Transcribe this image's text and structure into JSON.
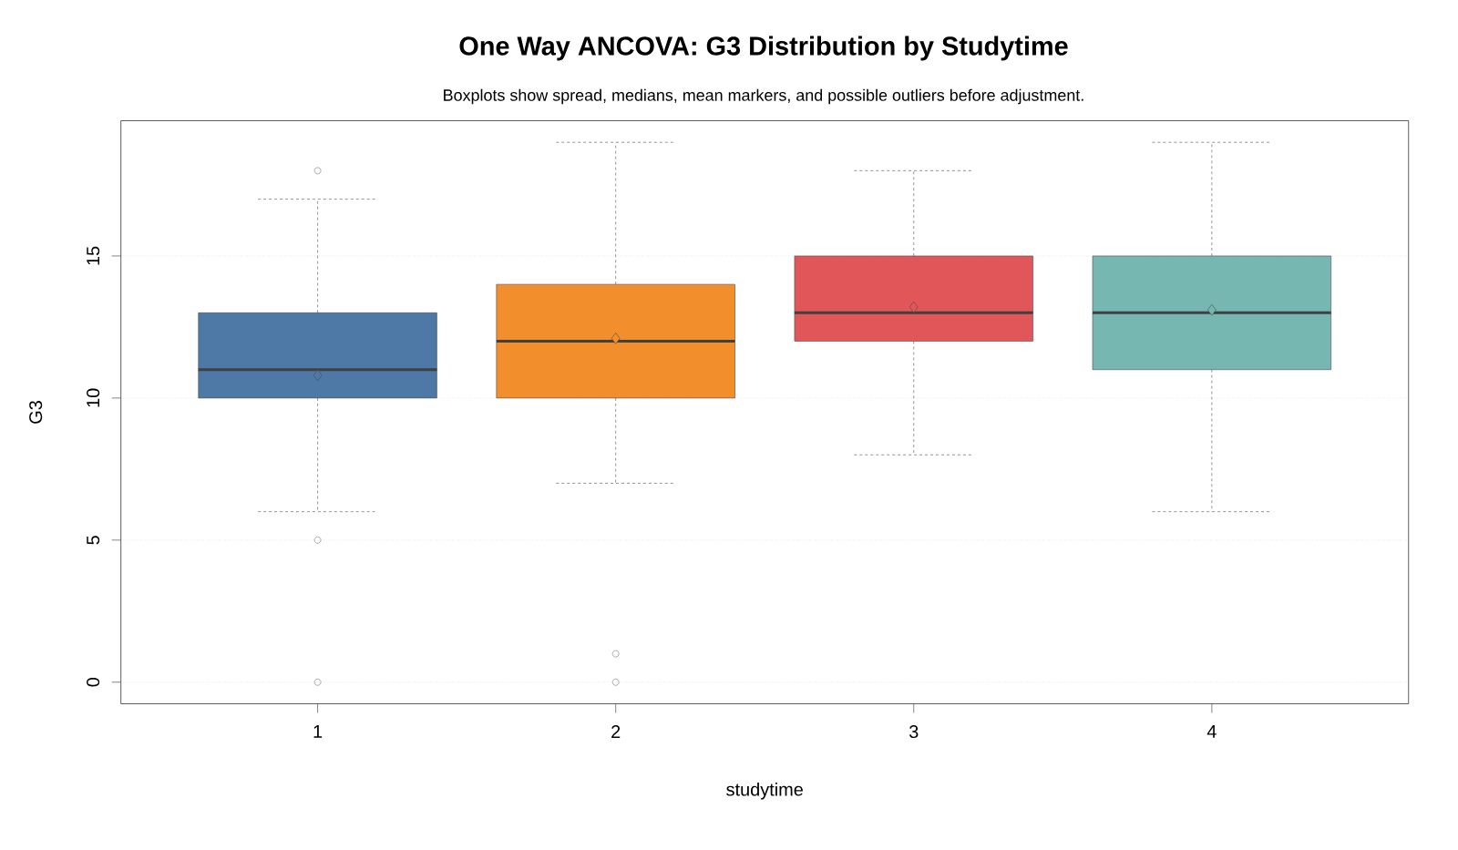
{
  "chart_data": {
    "type": "box",
    "title": "One Way ANCOVA: G3 Distribution by Studytime",
    "subtitle": "Boxplots show spread, medians, mean markers, and possible outliers before adjustment.",
    "xlabel": "studytime",
    "ylabel": "G3",
    "categories": [
      "1",
      "2",
      "3",
      "4"
    ],
    "colors": [
      "#4e79a7",
      "#f28e2b",
      "#e15759",
      "#76b7b2"
    ],
    "boxes": [
      {
        "low": 6,
        "q1": 10,
        "median": 11,
        "q3": 13,
        "high": 17,
        "mean": 10.8,
        "outliers": [
          18,
          5,
          0
        ]
      },
      {
        "low": 7,
        "q1": 10,
        "median": 12,
        "q3": 14,
        "high": 19,
        "mean": 12.1,
        "outliers": [
          1,
          0
        ]
      },
      {
        "low": 8,
        "q1": 12,
        "median": 13,
        "q3": 15,
        "high": 18,
        "mean": 13.2
      },
      {
        "low": 6,
        "q1": 11,
        "median": 13,
        "q3": 15,
        "high": 19,
        "mean": 13.1
      }
    ],
    "ylim": [
      -0.76,
      19.76
    ],
    "yticks": [
      0,
      5,
      10,
      15
    ],
    "grid": "y"
  }
}
